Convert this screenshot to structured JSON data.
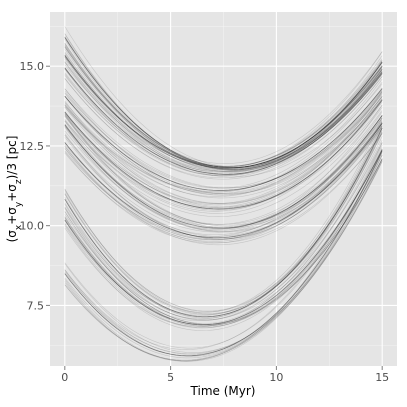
{
  "chart_data": {
    "type": "line",
    "title": "",
    "xlabel": "Time (Myr)",
    "ylabel": {
      "parts": [
        {
          "text": "(σ",
          "sub": false
        },
        {
          "text": "x",
          "sub": true
        },
        {
          "text": "+σ",
          "sub": false
        },
        {
          "text": "y",
          "sub": true
        },
        {
          "text": "+σ",
          "sub": false
        },
        {
          "text": "z",
          "sub": true
        },
        {
          "text": ")/3 [pc]",
          "sub": false
        }
      ]
    },
    "xlim": [
      -0.7,
      15.7
    ],
    "ylim": [
      5.6,
      16.7
    ],
    "x_ticks": [
      0,
      5,
      10,
      15
    ],
    "x_tick_labels": [
      "0",
      "5",
      "10",
      "15"
    ],
    "y_ticks": [
      7.5,
      10.0,
      12.5,
      15.0
    ],
    "y_tick_labels": [
      "7.5",
      "10.0",
      "12.5",
      "15.0"
    ],
    "grid": true,
    "legend": "none",
    "line_color": "#000000",
    "panel_background": "#e5e5e5",
    "grid_color": "#ffffff",
    "series": [
      {
        "x": [
          0,
          2.5,
          5,
          7.5,
          10,
          12.5,
          15
        ],
        "y": [
          15.8,
          13.8,
          12.5,
          11.9,
          12.0,
          13.0,
          15.3
        ]
      },
      {
        "x": [
          0,
          2.5,
          5,
          7.5,
          10,
          12.5,
          15
        ],
        "y": [
          15.3,
          13.5,
          12.2,
          11.8,
          12.1,
          13.2,
          15.0
        ]
      },
      {
        "x": [
          0,
          2.5,
          5,
          7.5,
          10,
          12.5,
          15
        ],
        "y": [
          14.9,
          13.2,
          12.0,
          11.6,
          11.9,
          13.0,
          14.8
        ]
      },
      {
        "x": [
          0,
          2.5,
          5,
          7.5,
          10,
          12.5,
          15
        ],
        "y": [
          14.0,
          12.5,
          11.4,
          11.1,
          11.4,
          12.6,
          14.3
        ]
      },
      {
        "x": [
          0,
          2.5,
          5,
          7.5,
          10,
          12.5,
          15
        ],
        "y": [
          13.5,
          11.9,
          10.9,
          10.5,
          10.9,
          12.0,
          14.0
        ]
      },
      {
        "x": [
          0,
          2.5,
          5,
          7.5,
          10,
          12.5,
          15
        ],
        "y": [
          13.1,
          11.4,
          10.3,
          9.9,
          10.3,
          11.5,
          13.5
        ]
      },
      {
        "x": [
          0,
          2.5,
          5,
          7.5,
          10,
          12.5,
          15
        ],
        "y": [
          12.5,
          11.0,
          10.0,
          9.6,
          10.0,
          11.2,
          13.3
        ]
      },
      {
        "x": [
          0,
          2.5,
          5,
          7.5,
          10,
          12.5,
          15
        ],
        "y": [
          10.6,
          8.8,
          7.6,
          7.2,
          7.9,
          9.8,
          13.3
        ]
      },
      {
        "x": [
          0,
          2.5,
          5,
          7.5,
          10,
          12.5,
          15
        ],
        "y": [
          10.0,
          8.3,
          7.3,
          7.0,
          7.6,
          9.4,
          12.6
        ]
      },
      {
        "x": [
          0,
          2.5,
          5,
          7.5,
          10,
          12.5,
          15
        ],
        "y": [
          8.4,
          6.9,
          6.0,
          6.1,
          7.2,
          9.3,
          12.4
        ]
      }
    ]
  }
}
